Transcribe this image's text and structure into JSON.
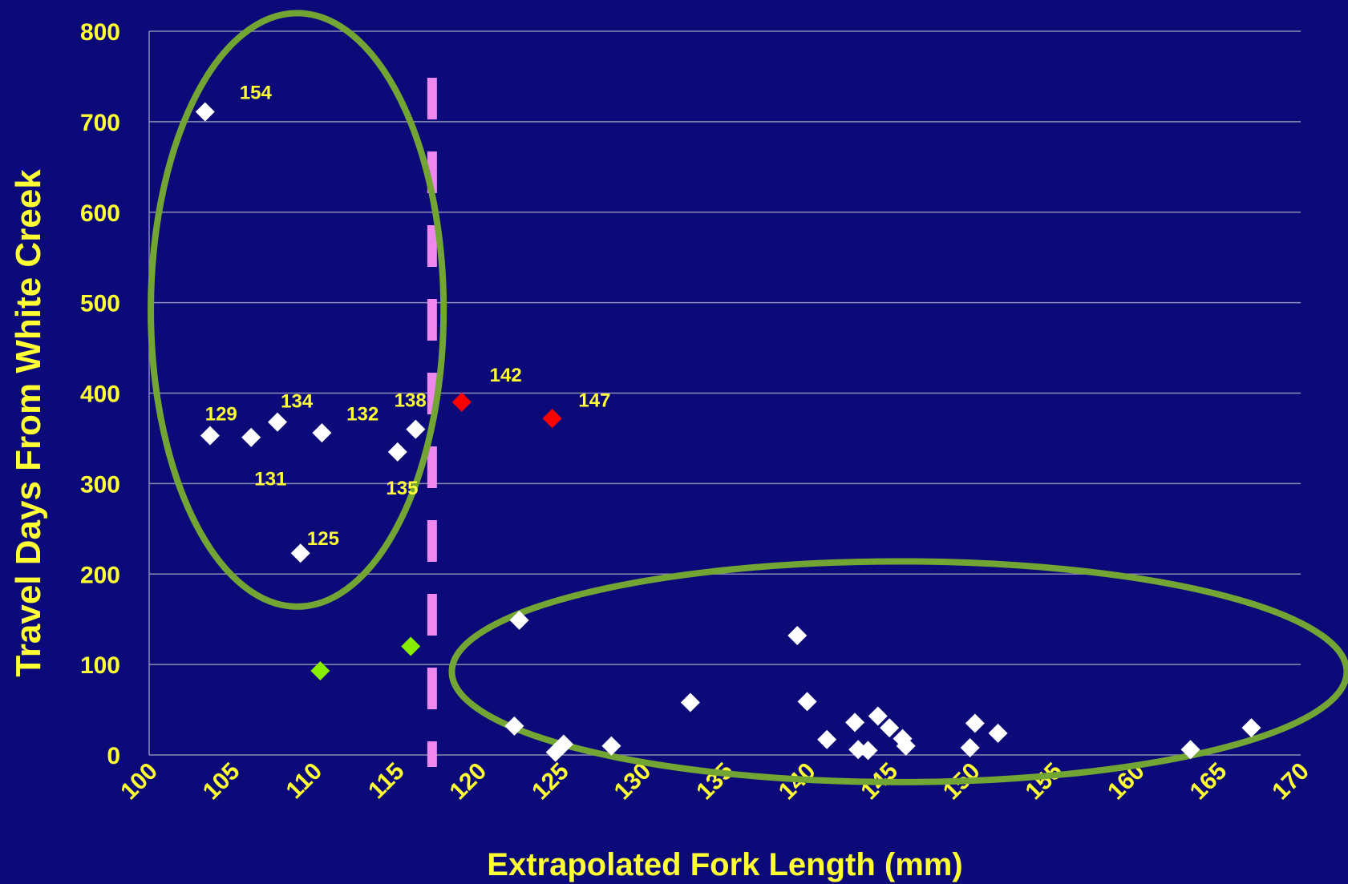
{
  "chart_data": {
    "type": "scatter",
    "title": "",
    "xlabel": "Extrapolated Fork Length (mm)",
    "ylabel": "Travel Days From White Creek",
    "xlim": [
      100,
      170
    ],
    "ylim": [
      0,
      800
    ],
    "x_ticks": [
      "100",
      "105",
      "110",
      "115",
      "120",
      "125",
      "130",
      "135",
      "140",
      "145",
      "150",
      "155",
      "160",
      "165",
      "170"
    ],
    "y_ticks": [
      "0",
      "100",
      "200",
      "300",
      "400",
      "500",
      "600",
      "700",
      "800"
    ],
    "grid": true,
    "colors": {
      "background": "#0c0a78",
      "text": "#ffff33",
      "grid": "#8c8cb4",
      "ellipse": "#73a534",
      "cutoff_line": "#ee88ee"
    },
    "series": [
      {
        "color": "#ffffff",
        "points": [
          [
            103.4,
            711
          ],
          [
            103.7,
            353
          ],
          [
            106.2,
            351
          ],
          [
            107.8,
            368
          ],
          [
            109.2,
            223
          ],
          [
            110.5,
            356
          ],
          [
            115.1,
            335
          ],
          [
            116.2,
            360
          ],
          [
            122.2,
            32
          ],
          [
            122.5,
            149
          ],
          [
            124.7,
            3
          ],
          [
            125.2,
            12
          ],
          [
            128.1,
            10
          ],
          [
            132.9,
            58
          ],
          [
            139.4,
            132
          ],
          [
            140.0,
            59
          ],
          [
            141.2,
            17
          ],
          [
            142.9,
            36
          ],
          [
            143.1,
            6
          ],
          [
            143.7,
            5
          ],
          [
            144.3,
            43
          ],
          [
            145.0,
            30
          ],
          [
            145.8,
            18
          ],
          [
            146.0,
            10
          ],
          [
            149.9,
            8
          ],
          [
            150.2,
            35
          ],
          [
            151.6,
            24
          ],
          [
            163.3,
            6
          ],
          [
            167.0,
            30
          ]
        ]
      },
      {
        "color": "#ff0000",
        "points": [
          [
            119.0,
            390
          ],
          [
            124.5,
            372
          ]
        ]
      },
      {
        "color": "#88ee00",
        "points": [
          [
            110.4,
            93
          ],
          [
            115.9,
            120
          ]
        ]
      }
    ],
    "annotations": [
      {
        "text": "154",
        "x": 105.5,
        "y": 725
      },
      {
        "text": "129",
        "x": 103.4,
        "y": 370
      },
      {
        "text": "134",
        "x": 108.0,
        "y": 384
      },
      {
        "text": "132",
        "x": 112.0,
        "y": 370
      },
      {
        "text": "138",
        "x": 114.9,
        "y": 385
      },
      {
        "text": "131",
        "x": 106.4,
        "y": 298
      },
      {
        "text": "135",
        "x": 114.4,
        "y": 288
      },
      {
        "text": "125",
        "x": 109.6,
        "y": 232
      },
      {
        "text": "142",
        "x": 120.7,
        "y": 413
      },
      {
        "text": "147",
        "x": 126.1,
        "y": 385
      }
    ],
    "cutoff_line": {
      "x": 117.2,
      "style": "dashed"
    },
    "groupings": [
      {
        "shape": "ellipse",
        "cx": 109.0,
        "cy": 492,
        "rx": 8.9,
        "ry": 328
      },
      {
        "shape": "ellipse",
        "cx": 145.6,
        "cy": 92,
        "rx": 27.2,
        "ry": 122
      }
    ]
  }
}
